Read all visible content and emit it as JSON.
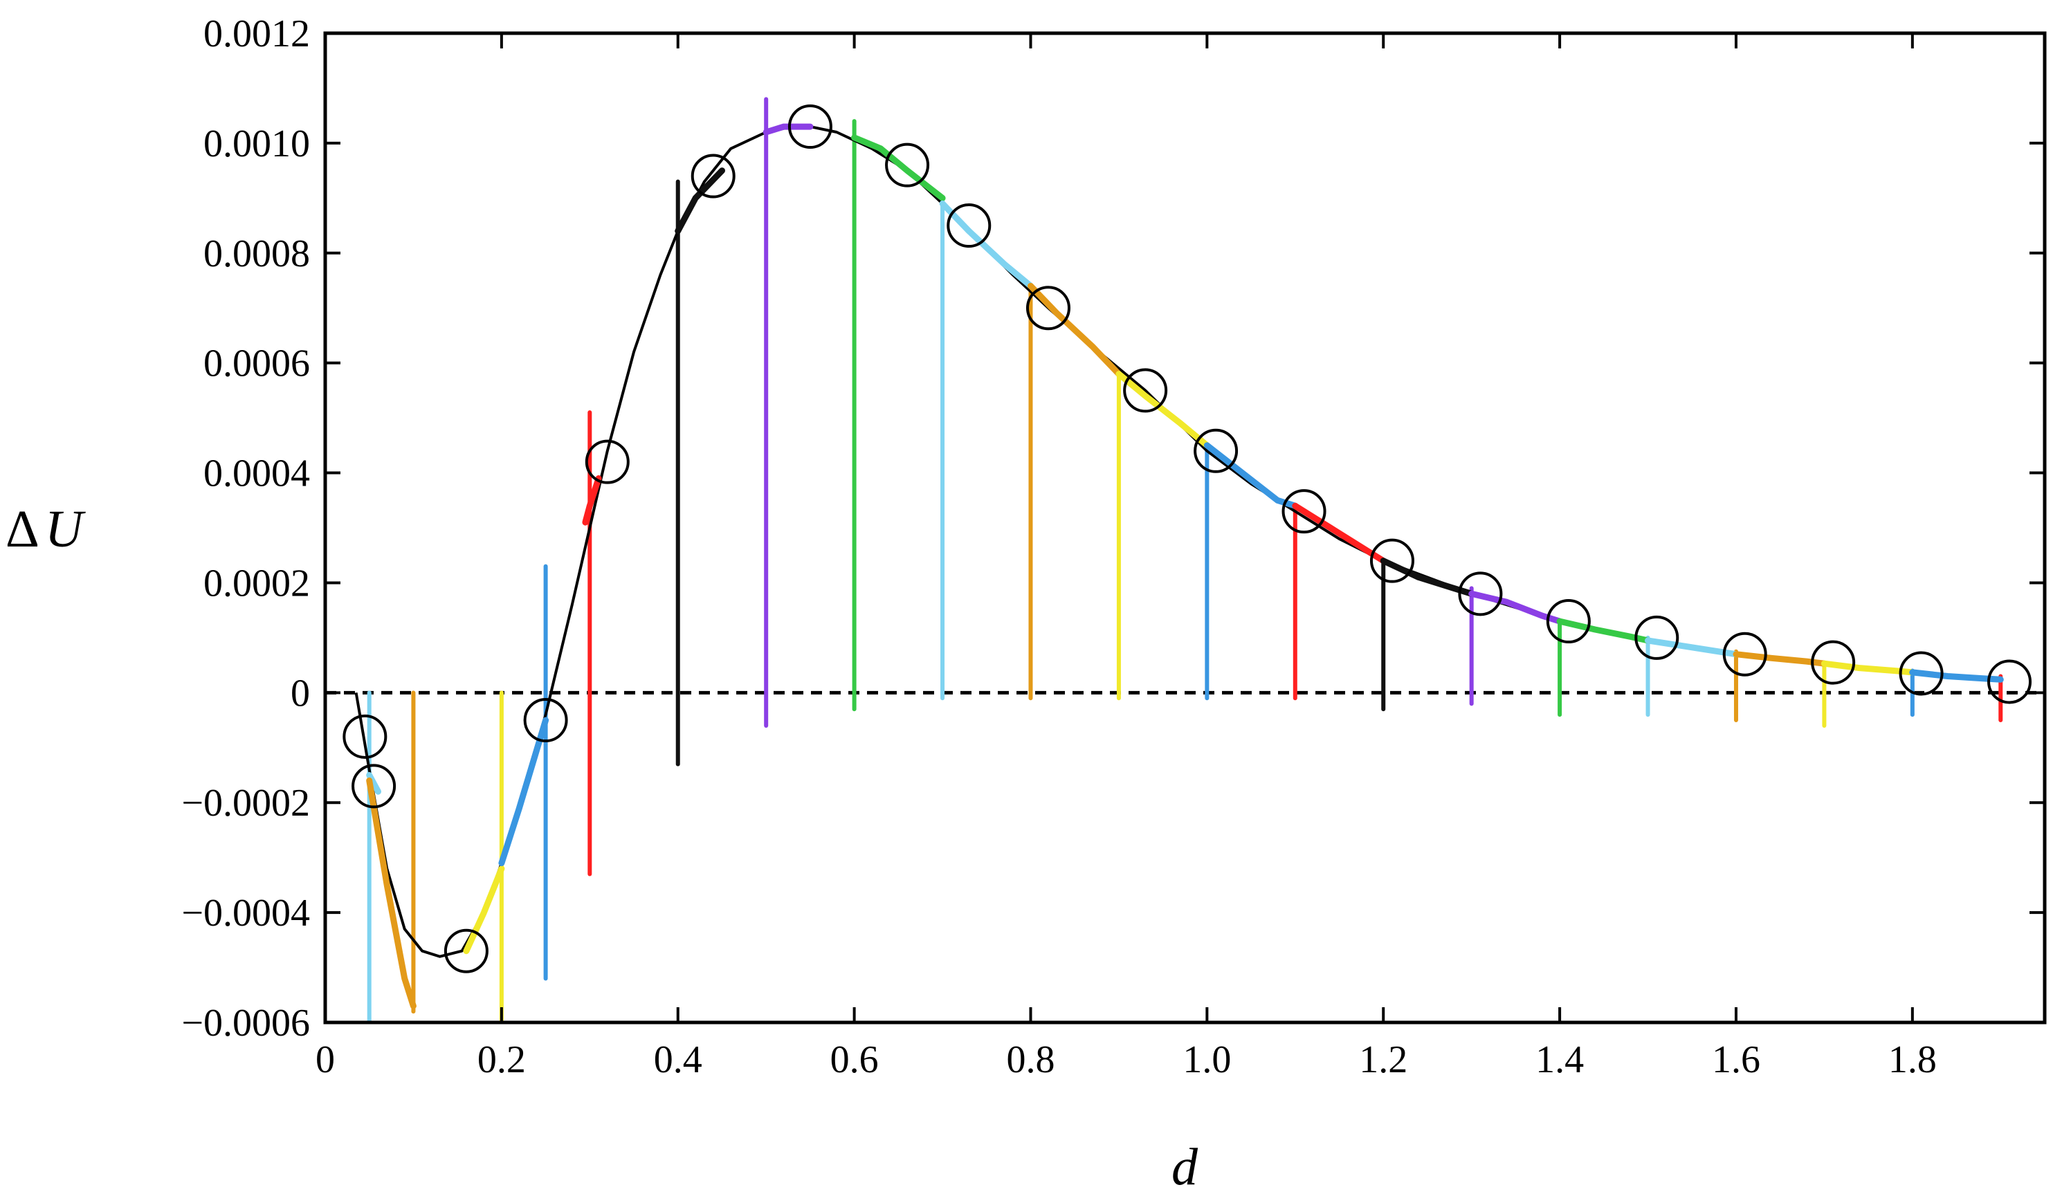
{
  "chart_data": {
    "type": "line",
    "title": "",
    "xlabel": "d",
    "ylabel_symbol": "Δ",
    "ylabel_var": "U",
    "xlim": [
      0,
      1.95
    ],
    "ylim": [
      -0.0006,
      0.0012
    ],
    "x_ticks": [
      0,
      0.2,
      0.4,
      0.6,
      0.8,
      1.0,
      1.2,
      1.4,
      1.6,
      1.8
    ],
    "x_tick_labels": [
      "0",
      "0.2",
      "0.4",
      "0.6",
      "0.8",
      "1.0",
      "1.2",
      "1.4",
      "1.6",
      "1.8"
    ],
    "y_ticks": [
      -0.0006,
      -0.0004,
      -0.0002,
      0,
      0.0002,
      0.0004,
      0.0006,
      0.0008,
      0.001,
      0.0012
    ],
    "y_tick_labels": [
      "−0.0006",
      "−0.0004",
      "−0.0002",
      "0",
      "0.0002",
      "0.0004",
      "0.0006",
      "0.0008",
      "0.0010",
      "0.0012"
    ],
    "grid": false,
    "zero_line": {
      "style": "dashed",
      "y": 0
    },
    "fitted_curve": {
      "color": "#000000",
      "x": [
        0.035,
        0.05,
        0.07,
        0.09,
        0.11,
        0.13,
        0.155,
        0.18,
        0.2,
        0.22,
        0.25,
        0.28,
        0.3,
        0.32,
        0.35,
        0.38,
        0.4,
        0.43,
        0.46,
        0.5,
        0.53,
        0.55,
        0.58,
        0.62,
        0.66,
        0.7,
        0.73,
        0.78,
        0.82,
        0.87,
        0.93,
        1.0,
        1.05,
        1.1,
        1.15,
        1.2,
        1.25,
        1.3,
        1.35,
        1.4,
        1.45,
        1.5,
        1.55,
        1.6,
        1.65,
        1.7,
        1.75,
        1.8,
        1.85,
        1.9
      ],
      "y": [
        0.0,
        -0.00014,
        -0.00032,
        -0.00043,
        -0.00047,
        -0.00048,
        -0.00047,
        -0.0004,
        -0.00031,
        -0.0002,
        -4e-05,
        0.00016,
        0.0003,
        0.00044,
        0.00062,
        0.00076,
        0.00084,
        0.00093,
        0.00099,
        0.00102,
        0.00103,
        0.00103,
        0.00102,
        0.00099,
        0.00095,
        0.00089,
        0.00084,
        0.00076,
        0.0007,
        0.00063,
        0.00055,
        0.00044,
        0.00038,
        0.00033,
        0.00028,
        0.00024,
        0.00021,
        0.00018,
        0.000155,
        0.00013,
        0.000112,
        9.5e-05,
        8.3e-05,
        7.1e-05,
        6.2e-05,
        5.3e-05,
        4.5e-05,
        3.8e-05,
        3.1e-05,
        2.5e-05
      ]
    },
    "circles": {
      "x": [
        0.045,
        0.055,
        0.16,
        0.25,
        0.32,
        0.44,
        0.55,
        0.66,
        0.73,
        0.82,
        0.93,
        1.01,
        1.11,
        1.21,
        1.31,
        1.41,
        1.51,
        1.61,
        1.71,
        1.81,
        1.91
      ],
      "y": [
        -8e-05,
        -0.00017,
        -0.00047,
        -5e-05,
        0.00042,
        0.00094,
        0.00103,
        0.00096,
        0.00085,
        0.0007,
        0.00055,
        0.00044,
        0.00033,
        0.00024,
        0.00018,
        0.00013,
        0.0001,
        7e-05,
        5.5e-05,
        3.5e-05,
        2e-05
      ]
    },
    "series": [
      {
        "color": "#7fd3f0",
        "x0": 0.05,
        "ymin": -0.0006,
        "ymax": 0.0,
        "seg_x": [
          0.05,
          0.06
        ],
        "seg_y": [
          -0.00015,
          -0.00018
        ]
      },
      {
        "color": "#e39a19",
        "x0": 0.1,
        "ymin": -0.00058,
        "ymax": 0.0,
        "seg_x": [
          0.05,
          0.07,
          0.09,
          0.1
        ],
        "seg_y": [
          -0.00016,
          -0.00035,
          -0.00052,
          -0.00057
        ]
      },
      {
        "color": "#f1e92b",
        "x0": 0.2,
        "ymin": -0.0006,
        "ymax": 0.0,
        "seg_x": [
          0.16,
          0.18,
          0.2
        ],
        "seg_y": [
          -0.00047,
          -0.0004,
          -0.00032
        ]
      },
      {
        "color": "#3996e1",
        "x0": 0.25,
        "ymin": -0.00052,
        "ymax": 0.00023,
        "seg_x": [
          0.2,
          0.22,
          0.25
        ],
        "seg_y": [
          -0.00031,
          -0.00021,
          -5e-05
        ]
      },
      {
        "color": "#ff2020",
        "x0": 0.3,
        "ymin": -0.00033,
        "ymax": 0.00051,
        "seg_x": [
          0.295,
          0.3,
          0.31
        ],
        "seg_y": [
          0.00031,
          0.00034,
          0.00039
        ]
      },
      {
        "color": "#111111",
        "x0": 0.4,
        "ymin": -0.00013,
        "ymax": 0.00093,
        "seg_x": [
          0.4,
          0.42,
          0.45
        ],
        "seg_y": [
          0.00084,
          0.0009,
          0.00095
        ]
      },
      {
        "color": "#8b3fe5",
        "x0": 0.5,
        "ymin": -6e-05,
        "ymax": 0.00108,
        "seg_x": [
          0.5,
          0.52,
          0.55
        ],
        "seg_y": [
          0.00102,
          0.00103,
          0.00103
        ]
      },
      {
        "color": "#36c946",
        "x0": 0.6,
        "ymin": -3e-05,
        "ymax": 0.00104,
        "seg_x": [
          0.6,
          0.63,
          0.66,
          0.7
        ],
        "seg_y": [
          0.00101,
          0.00099,
          0.00095,
          0.0009
        ]
      },
      {
        "color": "#7fd3f0",
        "x0": 0.7,
        "ymin": -1e-05,
        "ymax": 0.0009,
        "seg_x": [
          0.7,
          0.73,
          0.77,
          0.8
        ],
        "seg_y": [
          0.00089,
          0.00084,
          0.00078,
          0.00074
        ]
      },
      {
        "color": "#e39a19",
        "x0": 0.8,
        "ymin": -1e-05,
        "ymax": 0.00074,
        "seg_x": [
          0.8,
          0.83,
          0.87,
          0.9
        ],
        "seg_y": [
          0.00074,
          0.00069,
          0.00063,
          0.00058
        ]
      },
      {
        "color": "#f1e92b",
        "x0": 0.9,
        "ymin": -1e-05,
        "ymax": 0.00058,
        "seg_x": [
          0.9,
          0.93,
          0.97,
          1.0
        ],
        "seg_y": [
          0.00058,
          0.00054,
          0.00049,
          0.00045
        ]
      },
      {
        "color": "#3996e1",
        "x0": 1.0,
        "ymin": -1e-05,
        "ymax": 0.00045,
        "seg_x": [
          1.0,
          1.04,
          1.08,
          1.1
        ],
        "seg_y": [
          0.00045,
          0.0004,
          0.00035,
          0.00034
        ]
      },
      {
        "color": "#ff2020",
        "x0": 1.1,
        "ymin": -1e-05,
        "ymax": 0.00034,
        "seg_x": [
          1.1,
          1.14,
          1.18,
          1.2
        ],
        "seg_y": [
          0.00034,
          0.0003,
          0.00026,
          0.00024
        ]
      },
      {
        "color": "#111111",
        "x0": 1.2,
        "ymin": -3e-05,
        "ymax": 0.00024,
        "seg_x": [
          1.2,
          1.24,
          1.28,
          1.3
        ],
        "seg_y": [
          0.00024,
          0.00021,
          0.00019,
          0.00018
        ]
      },
      {
        "color": "#8b3fe5",
        "x0": 1.3,
        "ymin": -2e-05,
        "ymax": 0.00019,
        "seg_x": [
          1.3,
          1.34,
          1.38,
          1.4
        ],
        "seg_y": [
          0.00018,
          0.000165,
          0.00014,
          0.00013
        ]
      },
      {
        "color": "#36c946",
        "x0": 1.4,
        "ymin": -4e-05,
        "ymax": 0.00013,
        "seg_x": [
          1.4,
          1.44,
          1.48,
          1.5
        ],
        "seg_y": [
          0.00013,
          0.000115,
          0.000102,
          9.5e-05
        ]
      },
      {
        "color": "#7fd3f0",
        "x0": 1.5,
        "ymin": -4e-05,
        "ymax": 0.0001,
        "seg_x": [
          1.5,
          1.54,
          1.58,
          1.6
        ],
        "seg_y": [
          9.5e-05,
          8.5e-05,
          7.5e-05,
          7e-05
        ]
      },
      {
        "color": "#e39a19",
        "x0": 1.6,
        "ymin": -5e-05,
        "ymax": 7.5e-05,
        "seg_x": [
          1.6,
          1.64,
          1.68,
          1.7
        ],
        "seg_y": [
          7e-05,
          6.3e-05,
          5.7e-05,
          5.3e-05
        ]
      },
      {
        "color": "#f1e92b",
        "x0": 1.7,
        "ymin": -6e-05,
        "ymax": 5.5e-05,
        "seg_x": [
          1.7,
          1.74,
          1.78,
          1.8
        ],
        "seg_y": [
          5.3e-05,
          4.5e-05,
          4e-05,
          3.7e-05
        ]
      },
      {
        "color": "#3996e1",
        "x0": 1.8,
        "ymin": -4e-05,
        "ymax": 4e-05,
        "seg_x": [
          1.8,
          1.84,
          1.88,
          1.9
        ],
        "seg_y": [
          3.7e-05,
          3e-05,
          2.6e-05,
          2.4e-05
        ]
      },
      {
        "color": "#ff2020",
        "x0": 1.9,
        "ymin": -5e-05,
        "ymax": 3e-05,
        "seg_x": [
          1.9
        ],
        "seg_y": [
          2.4e-05
        ]
      }
    ]
  }
}
